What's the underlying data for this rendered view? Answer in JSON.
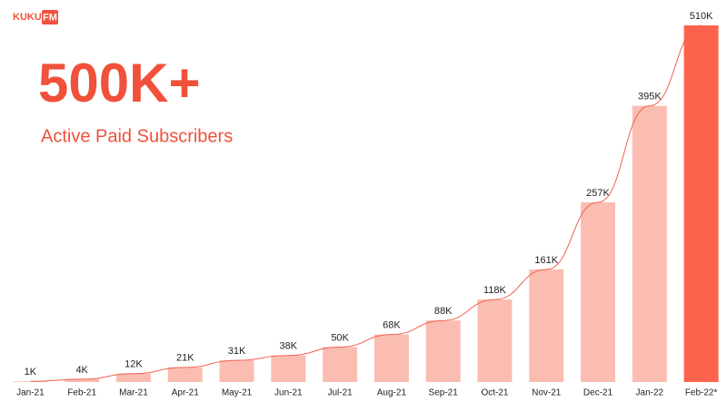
{
  "brand": {
    "name": "KUKU",
    "badge": "FM"
  },
  "chart_data": {
    "type": "bar",
    "title": "500K+",
    "subtitle": "Active Paid Subscribers",
    "categories": [
      "Jan-21",
      "Feb-21",
      "Mar-21",
      "Apr-21",
      "May-21",
      "Jun-21",
      "Jul-21",
      "Aug-21",
      "Sep-21",
      "Oct-21",
      "Nov-21",
      "Dec-21",
      "Jan-22",
      "Feb-22*"
    ],
    "values": [
      1000,
      4000,
      12000,
      21000,
      31000,
      38000,
      50000,
      68000,
      88000,
      118000,
      161000,
      257000,
      395000,
      510000
    ],
    "value_labels": [
      "1K",
      "4K",
      "12K",
      "21K",
      "31K",
      "38K",
      "50K",
      "68K",
      "88K",
      "118K",
      "161K",
      "257K",
      "395K",
      "510K"
    ],
    "colors": [
      "#fbbdb2",
      "#fbbdb2",
      "#fbbdb2",
      "#fbbdb2",
      "#fbbdb2",
      "#fbbdb2",
      "#fbbdb2",
      "#fbbdb2",
      "#fbbdb2",
      "#fbbdb2",
      "#fbbdb2",
      "#fbbdb2",
      "#fbbdb2",
      "#fd624c"
    ],
    "trend_color": "#f0624e",
    "ylim": [
      0,
      510000
    ]
  }
}
